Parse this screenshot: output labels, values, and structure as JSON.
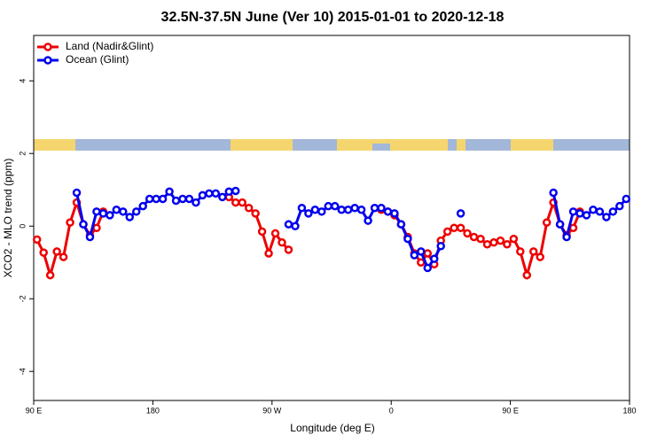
{
  "chart_data": {
    "type": "line",
    "title": "32.5N-37.5N June (Ver 10)   2015-01-01 to 2020-12-18",
    "x_label": "Longitude (deg E)",
    "y_label": "XCO2 - MLO trend (ppm)",
    "xlim": [
      90,
      540
    ],
    "ylim": [
      -4.8,
      5.25
    ],
    "xticks": [
      {
        "value": 90,
        "label": "90 E"
      },
      {
        "value": 180,
        "label": "180"
      },
      {
        "value": 270,
        "label": "90 W"
      },
      {
        "value": 360,
        "label": "0"
      },
      {
        "value": 450,
        "label": "90 E"
      },
      {
        "value": 540,
        "label": "180"
      }
    ],
    "yticks": [
      -4,
      -2,
      0,
      2,
      4
    ],
    "legend": "top-left",
    "x": [
      92.5,
      97.5,
      102.5,
      107.5,
      112.5,
      117.5,
      122.5,
      127.5,
      132.5,
      137.5,
      142.5,
      147.5,
      152.5,
      157.5,
      162.5,
      167.5,
      172.5,
      177.5,
      182.5,
      187.5,
      192.5,
      197.5,
      202.5,
      207.5,
      212.5,
      217.5,
      222.5,
      227.5,
      232.5,
      237.5,
      242.5,
      247.5,
      252.5,
      257.5,
      262.5,
      267.5,
      272.5,
      277.5,
      282.5,
      287.5,
      292.5,
      297.5,
      302.5,
      307.5,
      312.5,
      317.5,
      322.5,
      327.5,
      332.5,
      337.5,
      342.5,
      347.5,
      352.5,
      357.5,
      362.5,
      367.5,
      372.5,
      377.5,
      382.5,
      387.5,
      392.5,
      397.5,
      402.5,
      407.5,
      412.5,
      417.5,
      422.5,
      427.5,
      432.5,
      437.5,
      442.5,
      447.5,
      452.5,
      457.5,
      462.5,
      467.5,
      472.5,
      477.5,
      482.5,
      487.5,
      492.5,
      497.5,
      502.5,
      507.5,
      512.5,
      517.5,
      522.5,
      527.5,
      532.5,
      537.5
    ],
    "series": [
      {
        "name": "Land (Nadir&Glint)",
        "color": "#ee0000",
        "values": [
          -0.37,
          -0.73,
          -1.35,
          -0.7,
          -0.85,
          0.1,
          0.65,
          0.05,
          -0.25,
          -0.05,
          0.4,
          null,
          null,
          null,
          null,
          null,
          null,
          null,
          null,
          null,
          null,
          null,
          null,
          null,
          null,
          null,
          null,
          null,
          null,
          0.8,
          0.65,
          0.65,
          0.5,
          0.35,
          -0.15,
          -0.75,
          -0.2,
          -0.45,
          -0.65,
          null,
          null,
          null,
          null,
          null,
          null,
          null,
          null,
          null,
          null,
          null,
          null,
          null,
          0.45,
          0.4,
          0.3,
          0.05,
          -0.3,
          -0.75,
          -1.0,
          -0.75,
          -1.05,
          -0.4,
          -0.15,
          -0.05,
          -0.05,
          -0.2,
          -0.3,
          -0.35,
          -0.5,
          -0.45,
          -0.4,
          -0.5,
          -0.35,
          -0.7,
          -1.35,
          -0.7,
          -0.85,
          0.1,
          0.65,
          0.05,
          -0.25,
          -0.05,
          0.4,
          null,
          null,
          null,
          null,
          null,
          null,
          null
        ]
      },
      {
        "name": "Ocean (Glint)",
        "color": "#0000ee",
        "values": [
          null,
          null,
          null,
          null,
          null,
          null,
          0.92,
          0.05,
          -0.3,
          0.4,
          0.35,
          0.3,
          0.45,
          0.4,
          0.25,
          0.4,
          0.55,
          0.75,
          0.75,
          0.75,
          0.95,
          0.7,
          0.75,
          0.75,
          0.65,
          0.85,
          0.9,
          0.9,
          0.8,
          0.95,
          0.97,
          null,
          null,
          null,
          null,
          null,
          null,
          null,
          0.05,
          0.0,
          0.5,
          0.35,
          0.45,
          0.4,
          0.55,
          0.55,
          0.45,
          0.45,
          0.5,
          0.45,
          0.15,
          0.5,
          0.5,
          0.4,
          0.35,
          0.05,
          -0.35,
          -0.8,
          -0.7,
          -1.15,
          -0.9,
          -0.55,
          null,
          null,
          0.35,
          null,
          null,
          null,
          null,
          null,
          null,
          null,
          null,
          null,
          null,
          null,
          null,
          null,
          0.92,
          0.05,
          -0.3,
          0.4,
          0.35,
          0.3,
          0.45,
          0.4,
          0.25,
          0.4,
          0.55,
          0.75
        ]
      }
    ]
  }
}
